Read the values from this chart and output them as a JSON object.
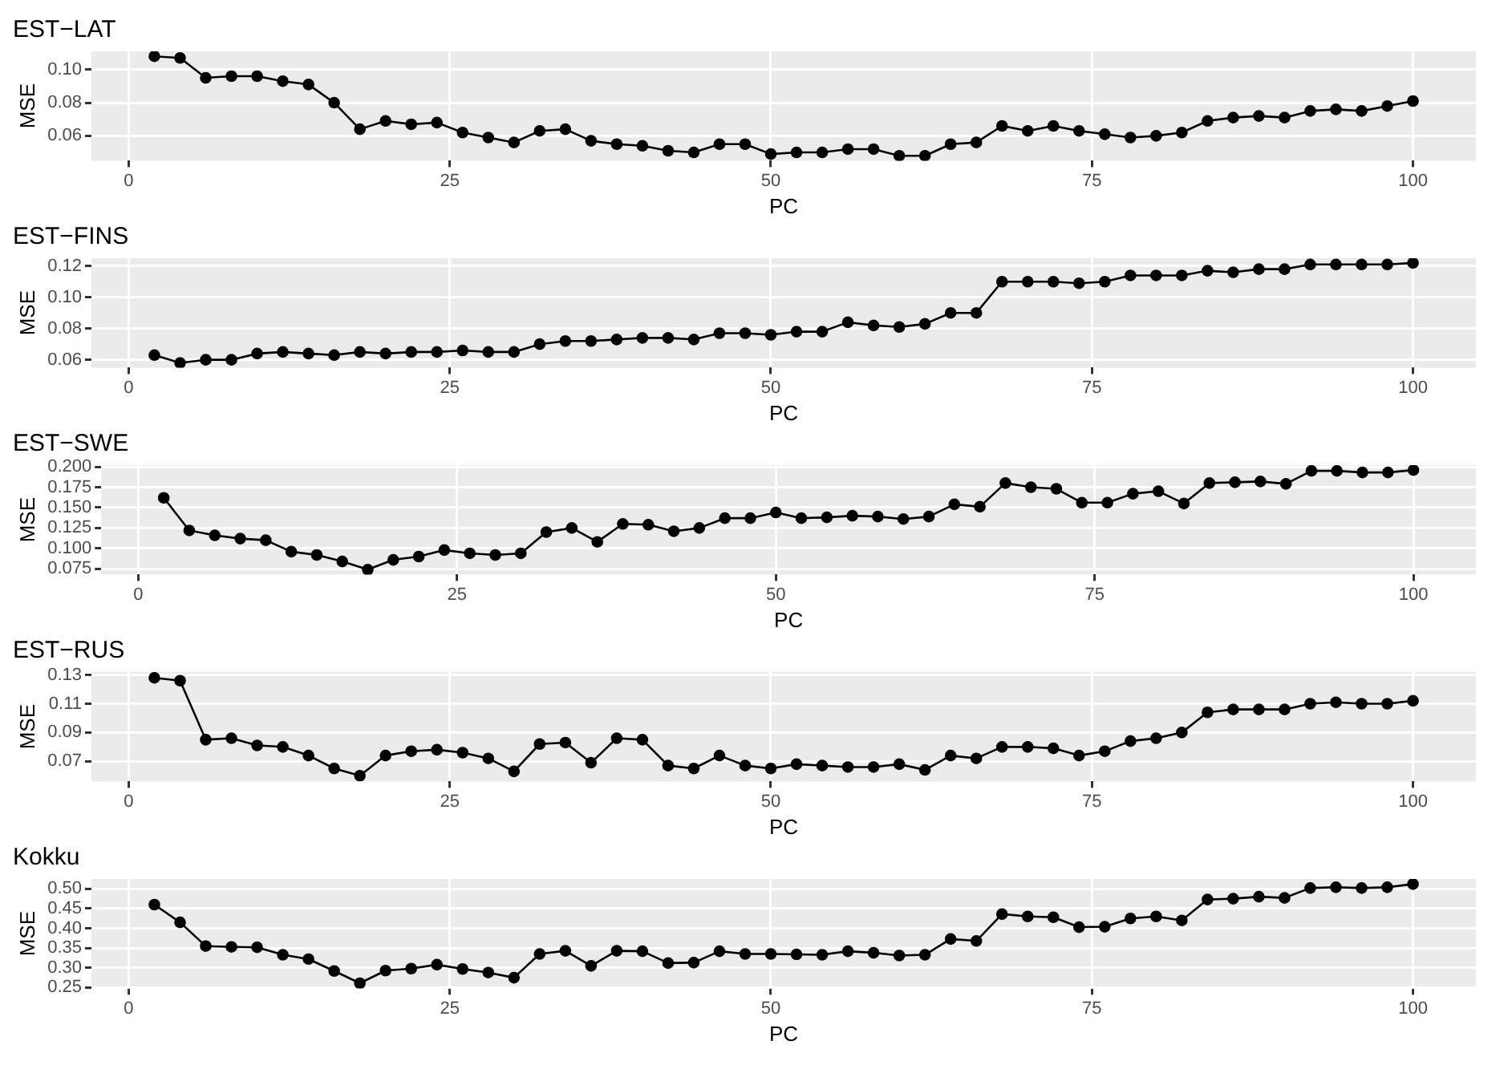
{
  "chart_data": [
    {
      "type": "line",
      "title": "EST−LAT",
      "xlabel": "PC",
      "ylabel": "MSE",
      "marker": "circle",
      "grid": true,
      "x": [
        2,
        4,
        6,
        8,
        10,
        12,
        14,
        16,
        18,
        20,
        22,
        24,
        26,
        28,
        30,
        32,
        34,
        36,
        38,
        40,
        42,
        44,
        46,
        48,
        50,
        52,
        54,
        56,
        58,
        60,
        62,
        64,
        66,
        68,
        70,
        72,
        74,
        76,
        78,
        80,
        82,
        84,
        86,
        88,
        90,
        92,
        94,
        96,
        98,
        100
      ],
      "xlim": [
        -2.9,
        104.9
      ],
      "xticks": [
        0,
        25,
        50,
        75,
        100
      ],
      "ylim": [
        0.045,
        0.111
      ],
      "yticks": [
        {
          "value": 0.06,
          "label": "0.06"
        },
        {
          "value": 0.08,
          "label": "0.08"
        },
        {
          "value": 0.1,
          "label": "0.10"
        }
      ],
      "series": [
        {
          "color": "#000000",
          "values": [
            0.108,
            0.107,
            0.095,
            0.096,
            0.096,
            0.093,
            0.091,
            0.08,
            0.064,
            0.069,
            0.067,
            0.068,
            0.062,
            0.059,
            0.056,
            0.063,
            0.064,
            0.057,
            0.055,
            0.054,
            0.051,
            0.05,
            0.055,
            0.055,
            0.049,
            0.05,
            0.05,
            0.052,
            0.052,
            0.048,
            0.048,
            0.055,
            0.056,
            0.066,
            0.063,
            0.066,
            0.063,
            0.061,
            0.059,
            0.06,
            0.062,
            0.069,
            0.071,
            0.072,
            0.071,
            0.075,
            0.076,
            0.075,
            0.078,
            0.081
          ]
        }
      ]
    },
    {
      "type": "line",
      "title": "EST−FINS",
      "xlabel": "PC",
      "ylabel": "MSE",
      "marker": "circle",
      "grid": true,
      "x": [
        2,
        4,
        6,
        8,
        10,
        12,
        14,
        16,
        18,
        20,
        22,
        24,
        26,
        28,
        30,
        32,
        34,
        36,
        38,
        40,
        42,
        44,
        46,
        48,
        50,
        52,
        54,
        56,
        58,
        60,
        62,
        64,
        66,
        68,
        70,
        72,
        74,
        76,
        78,
        80,
        82,
        84,
        86,
        88,
        90,
        92,
        94,
        96,
        98,
        100
      ],
      "xlim": [
        -2.9,
        104.9
      ],
      "xticks": [
        0,
        25,
        50,
        75,
        100
      ],
      "ylim": [
        0.055,
        0.125
      ],
      "yticks": [
        {
          "value": 0.06,
          "label": "0.06"
        },
        {
          "value": 0.08,
          "label": "0.08"
        },
        {
          "value": 0.1,
          "label": "0.10"
        },
        {
          "value": 0.12,
          "label": "0.12"
        }
      ],
      "series": [
        {
          "color": "#000000",
          "values": [
            0.063,
            0.058,
            0.06,
            0.06,
            0.064,
            0.065,
            0.064,
            0.063,
            0.065,
            0.064,
            0.065,
            0.065,
            0.066,
            0.065,
            0.065,
            0.07,
            0.072,
            0.072,
            0.073,
            0.074,
            0.074,
            0.073,
            0.077,
            0.077,
            0.076,
            0.078,
            0.078,
            0.084,
            0.082,
            0.081,
            0.083,
            0.09,
            0.09,
            0.11,
            0.11,
            0.11,
            0.109,
            0.11,
            0.114,
            0.114,
            0.114,
            0.117,
            0.116,
            0.118,
            0.118,
            0.121,
            0.121,
            0.121,
            0.121,
            0.122
          ]
        }
      ]
    },
    {
      "type": "line",
      "title": "EST−SWE",
      "xlabel": "PC",
      "ylabel": "MSE",
      "marker": "circle",
      "grid": true,
      "x": [
        2,
        4,
        6,
        8,
        10,
        12,
        14,
        16,
        18,
        20,
        22,
        24,
        26,
        28,
        30,
        32,
        34,
        36,
        38,
        40,
        42,
        44,
        46,
        48,
        50,
        52,
        54,
        56,
        58,
        60,
        62,
        64,
        66,
        68,
        70,
        72,
        74,
        76,
        78,
        80,
        82,
        84,
        86,
        88,
        90,
        92,
        94,
        96,
        98,
        100
      ],
      "xlim": [
        -2.9,
        104.9
      ],
      "xticks": [
        0,
        25,
        50,
        75,
        100
      ],
      "ylim": [
        0.068,
        0.202
      ],
      "yticks": [
        {
          "value": 0.075,
          "label": "0.075"
        },
        {
          "value": 0.1,
          "label": "0.100"
        },
        {
          "value": 0.125,
          "label": "0.125"
        },
        {
          "value": 0.15,
          "label": "0.150"
        },
        {
          "value": 0.175,
          "label": "0.175"
        },
        {
          "value": 0.2,
          "label": "0.200"
        }
      ],
      "series": [
        {
          "color": "#000000",
          "values": [
            0.162,
            0.122,
            0.116,
            0.112,
            0.11,
            0.096,
            0.092,
            0.084,
            0.074,
            0.086,
            0.09,
            0.098,
            0.094,
            0.092,
            0.094,
            0.12,
            0.125,
            0.108,
            0.13,
            0.129,
            0.121,
            0.125,
            0.137,
            0.137,
            0.144,
            0.137,
            0.138,
            0.14,
            0.139,
            0.136,
            0.139,
            0.154,
            0.151,
            0.18,
            0.175,
            0.173,
            0.156,
            0.156,
            0.167,
            0.17,
            0.155,
            0.18,
            0.181,
            0.182,
            0.179,
            0.195,
            0.195,
            0.193,
            0.193,
            0.196
          ]
        }
      ]
    },
    {
      "type": "line",
      "title": "EST−RUS",
      "xlabel": "PC",
      "ylabel": "MSE",
      "marker": "circle",
      "grid": true,
      "x": [
        2,
        4,
        6,
        8,
        10,
        12,
        14,
        16,
        18,
        20,
        22,
        24,
        26,
        28,
        30,
        32,
        34,
        36,
        38,
        40,
        42,
        44,
        46,
        48,
        50,
        52,
        54,
        56,
        58,
        60,
        62,
        64,
        66,
        68,
        70,
        72,
        74,
        76,
        78,
        80,
        82,
        84,
        86,
        88,
        90,
        92,
        94,
        96,
        98,
        100
      ],
      "xlim": [
        -2.9,
        104.9
      ],
      "xticks": [
        0,
        25,
        50,
        75,
        100
      ],
      "ylim": [
        0.056,
        0.132
      ],
      "yticks": [
        {
          "value": 0.07,
          "label": "0.07"
        },
        {
          "value": 0.09,
          "label": "0.09"
        },
        {
          "value": 0.11,
          "label": "0.11"
        },
        {
          "value": 0.13,
          "label": "0.13"
        }
      ],
      "series": [
        {
          "color": "#000000",
          "values": [
            0.128,
            0.126,
            0.085,
            0.086,
            0.081,
            0.08,
            0.074,
            0.065,
            0.06,
            0.074,
            0.077,
            0.078,
            0.076,
            0.072,
            0.063,
            0.082,
            0.083,
            0.069,
            0.086,
            0.085,
            0.067,
            0.065,
            0.074,
            0.067,
            0.065,
            0.068,
            0.067,
            0.066,
            0.066,
            0.068,
            0.064,
            0.074,
            0.072,
            0.08,
            0.08,
            0.079,
            0.074,
            0.077,
            0.084,
            0.086,
            0.09,
            0.104,
            0.106,
            0.106,
            0.106,
            0.11,
            0.111,
            0.11,
            0.11,
            0.112
          ]
        }
      ]
    },
    {
      "type": "line",
      "title": "Kokku",
      "xlabel": "PC",
      "ylabel": "MSE",
      "marker": "circle",
      "grid": true,
      "x": [
        2,
        4,
        6,
        8,
        10,
        12,
        14,
        16,
        18,
        20,
        22,
        24,
        26,
        28,
        30,
        32,
        34,
        36,
        38,
        40,
        42,
        44,
        46,
        48,
        50,
        52,
        54,
        56,
        58,
        60,
        62,
        64,
        66,
        68,
        70,
        72,
        74,
        76,
        78,
        80,
        82,
        84,
        86,
        88,
        90,
        92,
        94,
        96,
        98,
        100
      ],
      "xlim": [
        -2.9,
        104.9
      ],
      "xticks": [
        0,
        25,
        50,
        75,
        100
      ],
      "ylim": [
        0.248,
        0.525
      ],
      "yticks": [
        {
          "value": 0.25,
          "label": "0.25"
        },
        {
          "value": 0.3,
          "label": "0.30"
        },
        {
          "value": 0.35,
          "label": "0.35"
        },
        {
          "value": 0.4,
          "label": "0.40"
        },
        {
          "value": 0.45,
          "label": "0.45"
        },
        {
          "value": 0.5,
          "label": "0.50"
        }
      ],
      "series": [
        {
          "color": "#000000",
          "values": [
            0.46,
            0.415,
            0.355,
            0.353,
            0.352,
            0.333,
            0.322,
            0.292,
            0.261,
            0.293,
            0.298,
            0.308,
            0.297,
            0.288,
            0.275,
            0.335,
            0.343,
            0.305,
            0.343,
            0.342,
            0.312,
            0.313,
            0.342,
            0.335,
            0.335,
            0.334,
            0.333,
            0.342,
            0.338,
            0.331,
            0.333,
            0.373,
            0.368,
            0.436,
            0.43,
            0.428,
            0.403,
            0.404,
            0.425,
            0.43,
            0.42,
            0.473,
            0.475,
            0.48,
            0.477,
            0.502,
            0.504,
            0.502,
            0.504,
            0.512
          ]
        }
      ]
    }
  ]
}
